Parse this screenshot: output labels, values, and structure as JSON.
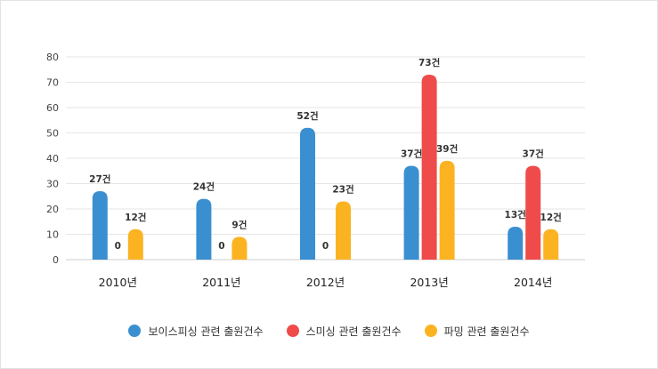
{
  "chart_data": {
    "type": "bar",
    "categories": [
      "2010년",
      "2011년",
      "2012년",
      "2013년",
      "2014년"
    ],
    "series": [
      {
        "name": "보이스피싱 관련 출원건수",
        "color": "#3a8fd0",
        "values": [
          27,
          24,
          52,
          37,
          13
        ],
        "labels": [
          "27건",
          "24건",
          "52건",
          "37건",
          "13건"
        ]
      },
      {
        "name": "스미싱 관련 출원건수",
        "color": "#ef4b4b",
        "values": [
          0,
          0,
          0,
          73,
          37
        ],
        "labels": [
          "0",
          "0",
          "0",
          "73건",
          "37건"
        ]
      },
      {
        "name": "파밍 관련 출원건수",
        "color": "#fbb321",
        "values": [
          12,
          9,
          23,
          39,
          12
        ],
        "labels": [
          "12건",
          "9건",
          "23건",
          "39건",
          "12건"
        ]
      }
    ],
    "yticks": [
      "0",
      "10",
      "20",
      "30",
      "40",
      "50",
      "60",
      "70",
      "80"
    ],
    "ylim": [
      0,
      80
    ],
    "grid": true,
    "legend": "bottom"
  }
}
